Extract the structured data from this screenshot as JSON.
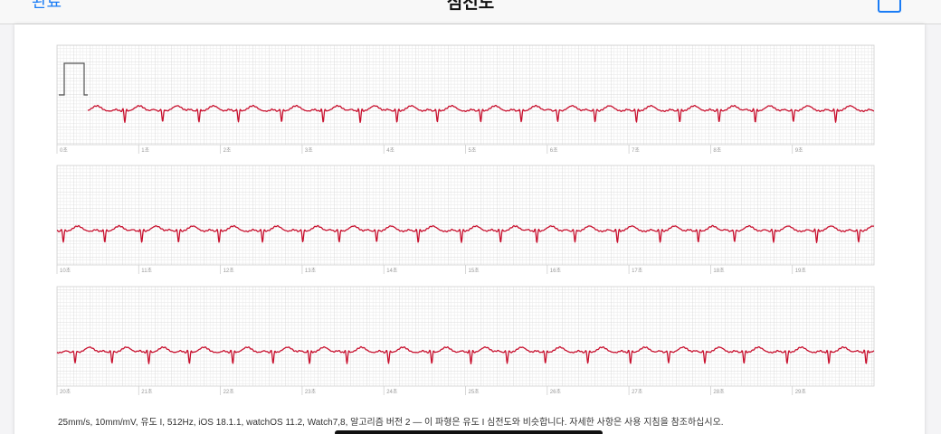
{
  "header": {
    "back": "완료",
    "title": "심전도"
  },
  "strips": [
    {
      "labels": [
        "0초",
        "1초",
        "2초",
        "3초",
        "4초",
        "5초",
        "6초",
        "7초",
        "8초",
        "9초"
      ]
    },
    {
      "labels": [
        "10초",
        "11초",
        "12초",
        "13초",
        "14초",
        "15초",
        "16초",
        "17초",
        "18초",
        "19초"
      ]
    },
    {
      "labels": [
        "20초",
        "21초",
        "22초",
        "23초",
        "24초",
        "25초",
        "26초",
        "27초",
        "28초",
        "29초"
      ]
    }
  ],
  "footer": "25mm/s, 10mm/mV, 유도 I, 512Hz, iOS 18.1.1, watchOS 11.2, Watch7,8, 알고리즘 버전 2 — 이 파형은 유도 I 심전도와 비슷합니다. 자세한 사항은 사용 지침을 참조하십시오."
}
